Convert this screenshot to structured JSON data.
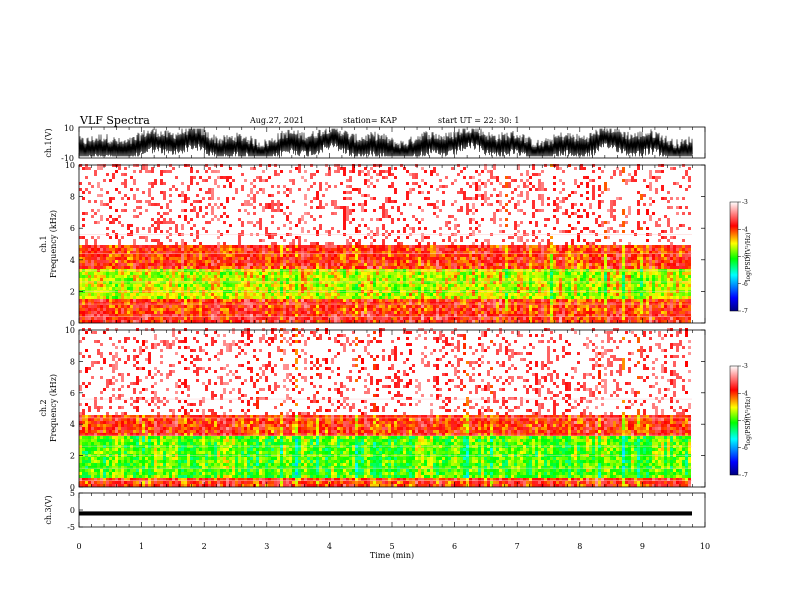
{
  "header": {
    "title": "VLF Spectra",
    "date": "Aug.27, 2021",
    "station": "station= KAP",
    "start_ut": "start UT =   22: 30: 1"
  },
  "ch1_waveform": {
    "ylabel": "ch.1(V)",
    "ymax_label": "10",
    "ymin_label": "-10",
    "ylim": [
      -10,
      10
    ]
  },
  "spectrogram1": {
    "ylabel": "ch.1 Frequency (kHz)",
    "ylabel_line1": "ch.1",
    "ylabel_line2": "Frequency (kHz)",
    "ylim": [
      0,
      10
    ],
    "yticks": [
      "0",
      "2",
      "4",
      "6",
      "8",
      "10"
    ]
  },
  "spectrogram2": {
    "ylabel": "ch.2 Frequency (kHz)",
    "ylabel_line1": "ch.2",
    "ylabel_line2": "Frequency (kHz)",
    "ylim": [
      0,
      10
    ],
    "yticks": [
      "0",
      "2",
      "4",
      "6",
      "8",
      "10"
    ]
  },
  "ch3_waveform": {
    "ylabel": "ch.3(V)",
    "ylim": [
      -5,
      5
    ],
    "yticks": [
      "5",
      "0",
      "-5"
    ]
  },
  "colorbar": {
    "label": "log(PSD)(V²/Hz)",
    "range": [
      -7,
      -3
    ],
    "ticks": [
      "-3",
      "-4",
      "-5",
      "-6",
      "-7"
    ],
    "colors": [
      "#000080",
      "#0000ff",
      "#00ffff",
      "#00ff00",
      "#ffff00",
      "#ff0000",
      "#ffffff"
    ]
  },
  "xaxis": {
    "label": "Time (min)",
    "ticks": [
      "0",
      "1",
      "2",
      "3",
      "4",
      "5",
      "6",
      "7",
      "8",
      "9",
      "10"
    ],
    "xlim": [
      0,
      10
    ]
  },
  "chart_data": [
    {
      "type": "line",
      "title": "",
      "ylabel": "ch.1(V)",
      "xlim": [
        0,
        9.8
      ],
      "ylim": [
        -10,
        10
      ],
      "description_values": {
        "mean": -2,
        "amplitude_range": [
          -9,
          8
        ]
      }
    },
    {
      "type": "heatmap",
      "ylabel": "ch.1 Frequency (kHz)",
      "xlim": [
        0,
        9.8
      ],
      "ylim": [
        0,
        10
      ],
      "bands_khz": [
        {
          "range": [
            0,
            0.5
          ],
          "level": -3.8
        },
        {
          "range": [
            0.5,
            1.5
          ],
          "level": -3.9
        },
        {
          "range": [
            1.5,
            3.5
          ],
          "level": -4.6
        },
        {
          "range": [
            3.5,
            5.0
          ],
          "level": -3.9
        },
        {
          "range": [
            5.0,
            10.0
          ],
          "level": -3.2
        }
      ]
    },
    {
      "type": "heatmap",
      "ylabel": "ch.2 Frequency (kHz)",
      "xlim": [
        0,
        9.8
      ],
      "ylim": [
        0,
        10
      ],
      "bands_khz": [
        {
          "range": [
            0,
            0.6
          ],
          "level": -3.9
        },
        {
          "range": [
            0.6,
            3.2
          ],
          "level": -4.9
        },
        {
          "range": [
            3.2,
            4.5
          ],
          "level": -3.9
        },
        {
          "range": [
            4.5,
            10.0
          ],
          "level": -3.2
        }
      ]
    },
    {
      "type": "line",
      "ylabel": "ch.3(V)",
      "xlim": [
        0,
        9.8
      ],
      "ylim": [
        -5,
        5
      ],
      "description_values": {
        "mean": -1,
        "amplitude_range": [
          -1.6,
          -0.4
        ]
      }
    }
  ]
}
